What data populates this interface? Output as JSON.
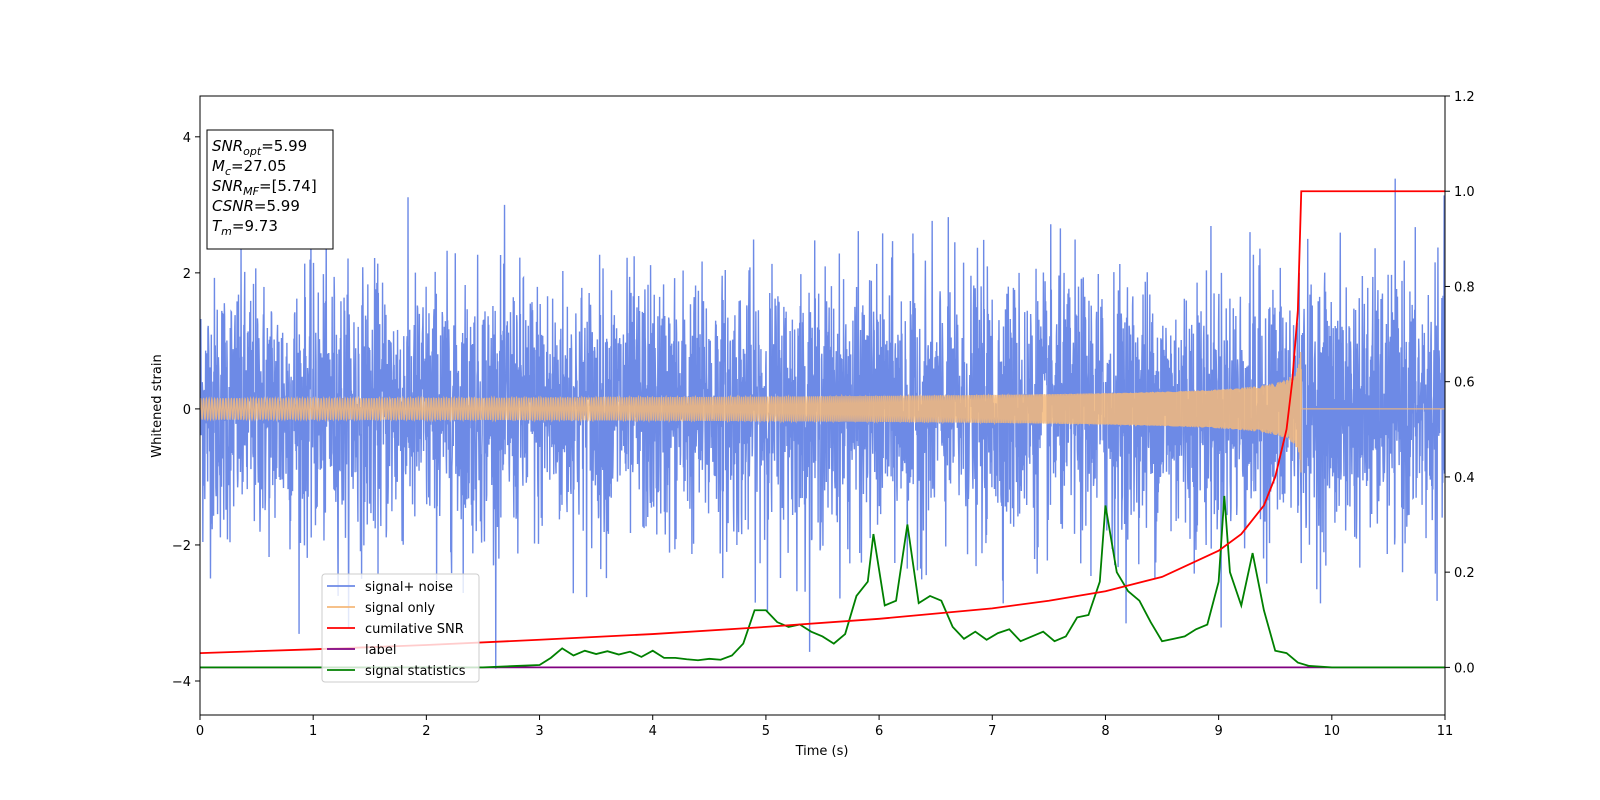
{
  "chart_data": {
    "type": "line",
    "title": "",
    "xlabel": "Time (s)",
    "ylabel": "Whitened strain",
    "y2label": "",
    "xlim": [
      0,
      11
    ],
    "ylim": [
      -4.5,
      4.6
    ],
    "y2lim": [
      -0.1,
      1.2
    ],
    "x_ticks": [
      0,
      1,
      2,
      3,
      4,
      5,
      6,
      7,
      8,
      9,
      10,
      11
    ],
    "y_ticks": [
      -4,
      -2,
      0,
      2,
      4
    ],
    "y_tick_labels": [
      "−4",
      "−2",
      "0",
      "2",
      "4"
    ],
    "y2_ticks": [
      0.0,
      0.2,
      0.4,
      0.6,
      0.8,
      1.0,
      1.2
    ],
    "y2_tick_labels": [
      "0.0",
      "0.2",
      "0.4",
      "0.6",
      "0.8",
      "1.0",
      "1.2"
    ],
    "grid": false,
    "legend_position": "lower-left",
    "annotation": [
      {
        "base": "SNR",
        "sub": "opt",
        "rest": "=5.99"
      },
      {
        "base": "M",
        "sub": "c",
        "rest": "=27.05"
      },
      {
        "base": "SNR",
        "sub": "MF",
        "rest": "=[5.74]"
      },
      {
        "base": "CSNR",
        "sub": "",
        "rest": "=5.99"
      },
      {
        "base": "T",
        "sub": "m",
        "rest": "=9.73"
      }
    ],
    "series": [
      {
        "name": "signal+ noise",
        "axis": "left",
        "color": "#6d8ae6",
        "style": "noise",
        "std": 0.95,
        "max_abs_peak": 4.2,
        "x_range": [
          0,
          11
        ]
      },
      {
        "name": "signal only",
        "axis": "left",
        "color": "#f5b87a",
        "style": "chirp",
        "merger_time": 9.73,
        "peak_amplitude": 1.15,
        "x_range": [
          0,
          11
        ]
      },
      {
        "name": "cumilative SNR",
        "axis": "right",
        "color": "#ff0000",
        "x": [
          0,
          1,
          2,
          3,
          4,
          5,
          6,
          7,
          7.5,
          8,
          8.5,
          9,
          9.2,
          9.4,
          9.5,
          9.6,
          9.65,
          9.7,
          9.73,
          11
        ],
        "values": [
          0.03,
          0.038,
          0.047,
          0.058,
          0.07,
          0.085,
          0.102,
          0.124,
          0.14,
          0.16,
          0.19,
          0.245,
          0.28,
          0.34,
          0.4,
          0.5,
          0.6,
          0.75,
          1.0,
          1.0
        ]
      },
      {
        "name": "label",
        "axis": "right",
        "color": "#800080",
        "x": [
          0,
          11
        ],
        "values": [
          0,
          0
        ]
      },
      {
        "name": "signal statistics",
        "axis": "right",
        "color": "#008000",
        "x": [
          0,
          0.5,
          1,
          1.5,
          2,
          2.5,
          2.8,
          3.0,
          3.1,
          3.2,
          3.3,
          3.4,
          3.5,
          3.6,
          3.7,
          3.8,
          3.9,
          4.0,
          4.1,
          4.2,
          4.3,
          4.4,
          4.5,
          4.6,
          4.7,
          4.8,
          4.9,
          5.0,
          5.1,
          5.2,
          5.3,
          5.4,
          5.5,
          5.6,
          5.7,
          5.8,
          5.9,
          5.95,
          6.05,
          6.15,
          6.25,
          6.35,
          6.45,
          6.55,
          6.65,
          6.75,
          6.85,
          6.95,
          7.05,
          7.15,
          7.25,
          7.35,
          7.45,
          7.55,
          7.65,
          7.75,
          7.85,
          7.95,
          8.0,
          8.1,
          8.2,
          8.3,
          8.4,
          8.5,
          8.6,
          8.7,
          8.8,
          8.9,
          9.0,
          9.05,
          9.1,
          9.2,
          9.3,
          9.4,
          9.5,
          9.6,
          9.7,
          9.8,
          10.0,
          11.0
        ],
        "values": [
          0.0,
          0.0,
          0.0,
          0.0,
          0.0,
          0.0,
          0.003,
          0.005,
          0.02,
          0.04,
          0.025,
          0.035,
          0.028,
          0.034,
          0.027,
          0.033,
          0.022,
          0.035,
          0.02,
          0.02,
          0.017,
          0.015,
          0.018,
          0.016,
          0.025,
          0.05,
          0.12,
          0.12,
          0.095,
          0.085,
          0.09,
          0.075,
          0.065,
          0.05,
          0.07,
          0.15,
          0.18,
          0.28,
          0.13,
          0.14,
          0.3,
          0.135,
          0.15,
          0.14,
          0.085,
          0.06,
          0.075,
          0.058,
          0.072,
          0.08,
          0.055,
          0.065,
          0.075,
          0.055,
          0.065,
          0.105,
          0.11,
          0.18,
          0.34,
          0.2,
          0.16,
          0.14,
          0.095,
          0.055,
          0.06,
          0.065,
          0.08,
          0.09,
          0.18,
          0.36,
          0.2,
          0.13,
          0.24,
          0.12,
          0.035,
          0.03,
          0.01,
          0.003,
          0.0,
          0.0
        ]
      }
    ]
  }
}
